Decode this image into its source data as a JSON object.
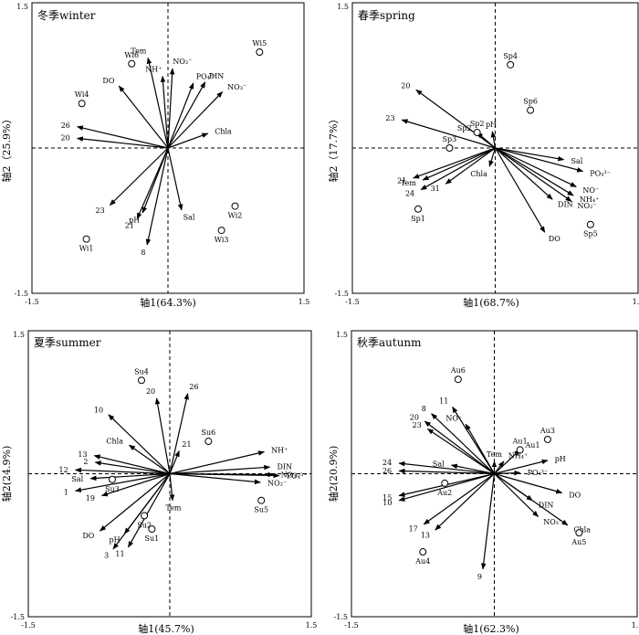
{
  "chart_data": [
    {
      "type": "scatter",
      "title": "冬季winter",
      "xlabel": "轴1(64.3%)",
      "ylabel": "轴2（25.9%）",
      "xlim": [
        -1.5,
        1.5
      ],
      "ylim": [
        -1.5,
        1.5
      ],
      "xticks": [
        "-1.5",
        "1.5"
      ],
      "yticks": [
        "1.5",
        "-1.5"
      ],
      "vectors": [
        {
          "label": "Tem",
          "x": -0.22,
          "y": 0.93
        },
        {
          "label": "NH⁺",
          "x": -0.06,
          "y": 0.74
        },
        {
          "label": "NO₂⁻",
          "x": 0.05,
          "y": 0.82
        },
        {
          "label": "PO₄³⁻",
          "x": 0.28,
          "y": 0.67
        },
        {
          "label": "DIN",
          "x": 0.41,
          "y": 0.68
        },
        {
          "label": "NO₃⁻",
          "x": 0.6,
          "y": 0.58
        },
        {
          "label": "Chla",
          "x": 0.44,
          "y": 0.15
        },
        {
          "label": "DO",
          "x": -0.54,
          "y": 0.64
        },
        {
          "label": "26",
          "x": -1.0,
          "y": 0.22
        },
        {
          "label": "20",
          "x": -1.0,
          "y": 0.1
        },
        {
          "label": "23",
          "x": -0.64,
          "y": -0.59
        },
        {
          "label": "21",
          "x": -0.34,
          "y": -0.73
        },
        {
          "label": "pH",
          "x": -0.28,
          "y": -0.67
        },
        {
          "label": "8",
          "x": -0.23,
          "y": -1.0
        },
        {
          "label": "Sal",
          "x": 0.15,
          "y": -0.64
        }
      ],
      "samples": [
        {
          "label": "Wi1",
          "x": -0.9,
          "y": -0.94
        },
        {
          "label": "Wi4",
          "x": -0.95,
          "y": 0.46
        },
        {
          "label": "Wi6",
          "x": -0.4,
          "y": 0.87
        },
        {
          "label": "Wi5",
          "x": 1.01,
          "y": 0.99
        },
        {
          "label": "Wi2",
          "x": 0.74,
          "y": -0.6
        },
        {
          "label": "Wi3",
          "x": 0.59,
          "y": -0.85
        }
      ]
    },
    {
      "type": "scatter",
      "title": "春季spring",
      "xlabel": "轴1(68.7%)",
      "ylabel": "轴2（17.7%）",
      "xlim": [
        -1.5,
        1.5
      ],
      "ylim": [
        -1.5,
        1.5
      ],
      "xticks": [
        "-1.5",
        "1.5"
      ],
      "yticks": [
        "1.5",
        "-1.5"
      ],
      "vectors": [
        {
          "label": "20",
          "x": -0.83,
          "y": 0.6
        },
        {
          "label": "23",
          "x": -0.98,
          "y": 0.29
        },
        {
          "label": "Sp2",
          "x": -0.19,
          "y": 0.16
        },
        {
          "label": "pH",
          "x": -0.03,
          "y": 0.17
        },
        {
          "label": "21",
          "x": -0.86,
          "y": -0.31
        },
        {
          "label": "Tem",
          "x": -0.76,
          "y": -0.33
        },
        {
          "label": "24",
          "x": -0.78,
          "y": -0.43
        },
        {
          "label": "31",
          "x": -0.52,
          "y": -0.37
        },
        {
          "label": "Chla",
          "x": -0.06,
          "y": -0.19
        },
        {
          "label": "Sal",
          "x": 0.72,
          "y": -0.12
        },
        {
          "label": "PO₄³⁻",
          "x": 0.92,
          "y": -0.24
        },
        {
          "label": "NO⁻",
          "x": 0.85,
          "y": -0.4
        },
        {
          "label": "NH₄⁺",
          "x": 0.82,
          "y": -0.49
        },
        {
          "label": "NO₂⁻",
          "x": 0.8,
          "y": -0.55
        },
        {
          "label": "DIN",
          "x": 0.6,
          "y": -0.53
        },
        {
          "label": "DO",
          "x": 0.52,
          "y": -0.87
        }
      ],
      "samples": [
        {
          "label": "Sp4",
          "x": 0.16,
          "y": 0.86
        },
        {
          "label": "Sp6",
          "x": 0.37,
          "y": 0.39
        },
        {
          "label": "Sp2",
          "x": -0.19,
          "y": 0.16
        },
        {
          "label": "Sp3",
          "x": -0.48,
          "y": 0.0
        },
        {
          "label": "Sp1",
          "x": -0.81,
          "y": -0.63
        },
        {
          "label": "Sp5",
          "x": 1.0,
          "y": -0.79
        }
      ]
    },
    {
      "type": "scatter",
      "title": "夏季summer",
      "xlabel": "轴1(45.7%)",
      "ylabel": "轴2(24.9%)",
      "xlim": [
        -1.5,
        1.5
      ],
      "ylim": [
        -1.5,
        1.5
      ],
      "xticks": [
        "-1.5",
        "1.5"
      ],
      "yticks": [
        "1.5",
        "-1.5"
      ],
      "vectors": [
        {
          "label": "20",
          "x": -0.14,
          "y": 0.79
        },
        {
          "label": "26",
          "x": 0.19,
          "y": 0.84
        },
        {
          "label": "10",
          "x": -0.65,
          "y": 0.62
        },
        {
          "label": "21",
          "x": 0.1,
          "y": 0.24
        },
        {
          "label": "Chla",
          "x": -0.43,
          "y": 0.3
        },
        {
          "label": "13",
          "x": -0.8,
          "y": 0.19
        },
        {
          "label": "2",
          "x": -0.79,
          "y": 0.12
        },
        {
          "label": "12",
          "x": -1.0,
          "y": 0.04
        },
        {
          "label": "Sal",
          "x": -0.84,
          "y": -0.05
        },
        {
          "label": "1",
          "x": -1.0,
          "y": -0.18
        },
        {
          "label": "19",
          "x": -0.72,
          "y": -0.23
        },
        {
          "label": "NH⁺",
          "x": 1.0,
          "y": 0.23
        },
        {
          "label": "DIN",
          "x": 1.06,
          "y": 0.07
        },
        {
          "label": "NO₃⁻",
          "x": 1.1,
          "y": -0.01
        },
        {
          "label": "PO₄³⁻",
          "x": 1.16,
          "y": -0.02
        },
        {
          "label": "NO₂⁻",
          "x": 0.96,
          "y": -0.09
        },
        {
          "label": "Tem",
          "x": 0.03,
          "y": -0.28
        },
        {
          "label": "DO",
          "x": -0.74,
          "y": -0.6
        },
        {
          "label": "pH",
          "x": -0.48,
          "y": -0.63
        },
        {
          "label": "3",
          "x": -0.6,
          "y": -0.79
        },
        {
          "label": "11",
          "x": -0.44,
          "y": -0.77
        }
      ],
      "samples": [
        {
          "label": "Su4",
          "x": -0.3,
          "y": 0.98
        },
        {
          "label": "Su6",
          "x": 0.41,
          "y": 0.34
        },
        {
          "label": "Su3",
          "x": -0.61,
          "y": -0.06
        },
        {
          "label": "Su2",
          "x": -0.27,
          "y": -0.44
        },
        {
          "label": "Su1",
          "x": -0.19,
          "y": -0.58
        },
        {
          "label": "Su5",
          "x": 0.97,
          "y": -0.28
        }
      ]
    },
    {
      "type": "scatter",
      "title": "秋季autunm",
      "xlabel": "轴1(62.3%)",
      "ylabel": "轴2(20.9%)",
      "xlim": [
        -1.5,
        1.5
      ],
      "ylim": [
        -1.5,
        1.5
      ],
      "xticks": [
        "-1.5",
        "1.5"
      ],
      "yticks": [
        "1.5",
        "-1.5"
      ],
      "vectors": [
        {
          "label": "8",
          "x": -0.66,
          "y": 0.63
        },
        {
          "label": "20",
          "x": -0.73,
          "y": 0.55
        },
        {
          "label": "23",
          "x": -0.7,
          "y": 0.47
        },
        {
          "label": "11",
          "x": -0.44,
          "y": 0.7
        },
        {
          "label": "NO⁻",
          "x": -0.3,
          "y": 0.52
        },
        {
          "label": "Tem",
          "x": 0.0,
          "y": 0.13
        },
        {
          "label": "NH₄⁺",
          "x": 0.1,
          "y": 0.13
        },
        {
          "label": "Au1",
          "x": 0.27,
          "y": 0.25
        },
        {
          "label": "pH",
          "x": 0.56,
          "y": 0.14
        },
        {
          "label": "PO₄³⁻",
          "x": 0.27,
          "y": 0.01
        },
        {
          "label": "DO",
          "x": 0.71,
          "y": -0.2
        },
        {
          "label": "DIN",
          "x": 0.4,
          "y": -0.28
        },
        {
          "label": "NO₃⁻",
          "x": 0.46,
          "y": -0.45
        },
        {
          "label": "Chla",
          "x": 0.77,
          "y": -0.54
        },
        {
          "label": "24",
          "x": -1.0,
          "y": 0.11
        },
        {
          "label": "26",
          "x": -1.0,
          "y": 0.03
        },
        {
          "label": "Sal",
          "x": -0.45,
          "y": 0.09
        },
        {
          "label": "15",
          "x": -1.0,
          "y": -0.23
        },
        {
          "label": "10",
          "x": -1.0,
          "y": -0.28
        },
        {
          "label": "17",
          "x": -0.74,
          "y": -0.53
        },
        {
          "label": "13",
          "x": -0.62,
          "y": -0.59
        },
        {
          "label": "9",
          "x": -0.12,
          "y": -1.0
        }
      ],
      "samples": [
        {
          "label": "Au6",
          "x": -0.38,
          "y": 0.99
        },
        {
          "label": "Au3",
          "x": 0.56,
          "y": 0.36
        },
        {
          "label": "Au1",
          "x": 0.27,
          "y": 0.25
        },
        {
          "label": "Au2",
          "x": -0.52,
          "y": -0.1
        },
        {
          "label": "Au5",
          "x": 0.89,
          "y": -0.62
        },
        {
          "label": "Au4",
          "x": -0.75,
          "y": -0.82
        }
      ]
    }
  ]
}
